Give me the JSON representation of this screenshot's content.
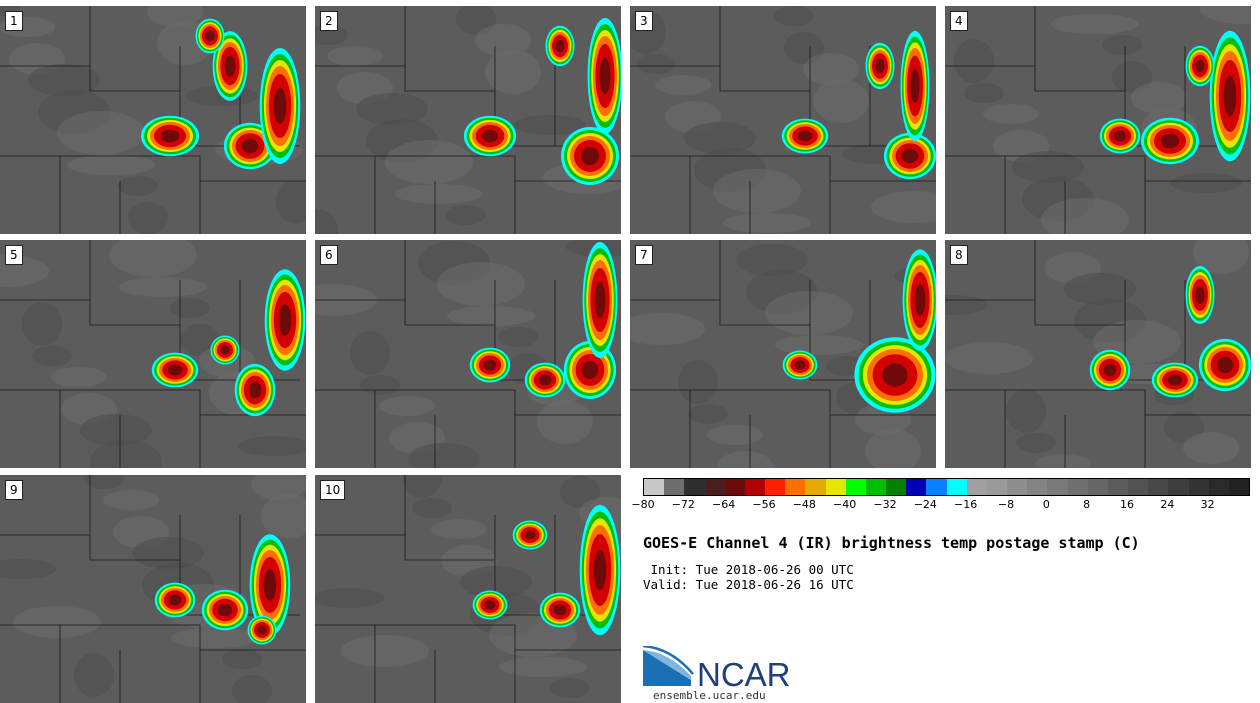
{
  "panels": [
    {
      "label": "1"
    },
    {
      "label": "2"
    },
    {
      "label": "3"
    },
    {
      "label": "4"
    },
    {
      "label": "5"
    },
    {
      "label": "6"
    },
    {
      "label": "7"
    },
    {
      "label": "8"
    },
    {
      "label": "9"
    },
    {
      "label": "10"
    }
  ],
  "colorbar": {
    "colors": [
      "#c8c8c8",
      "#6e6e6e",
      "#2e2e2e",
      "#4a1e1e",
      "#6e0a0a",
      "#b40000",
      "#ff1e00",
      "#ff6e00",
      "#e6aa00",
      "#e6e600",
      "#00ff00",
      "#00be00",
      "#008200",
      "#0000b4",
      "#0a82ff",
      "#00ffff",
      "#a0a0a0",
      "#9a9a9a",
      "#8e8e8e",
      "#848484",
      "#7a7a7a",
      "#707070",
      "#666666",
      "#5c5c5c",
      "#525252",
      "#484848",
      "#3e3e3e",
      "#343434",
      "#2a2a2a",
      "#222222"
    ],
    "ticks": [
      "−80",
      "−72",
      "−64",
      "−56",
      "−48",
      "−40",
      "−32",
      "−24",
      "−16",
      "−8",
      "0",
      "8",
      "16",
      "24",
      "32"
    ]
  },
  "title": "GOES-E Channel 4 (IR) brightness temp postage stamp (C)",
  "init": " Init: Tue 2018-06-26 00 UTC",
  "valid": "Valid: Tue 2018-06-26 16 UTC",
  "logo": {
    "text": "NCAR",
    "site": "ensemble.ucar.edu"
  }
}
